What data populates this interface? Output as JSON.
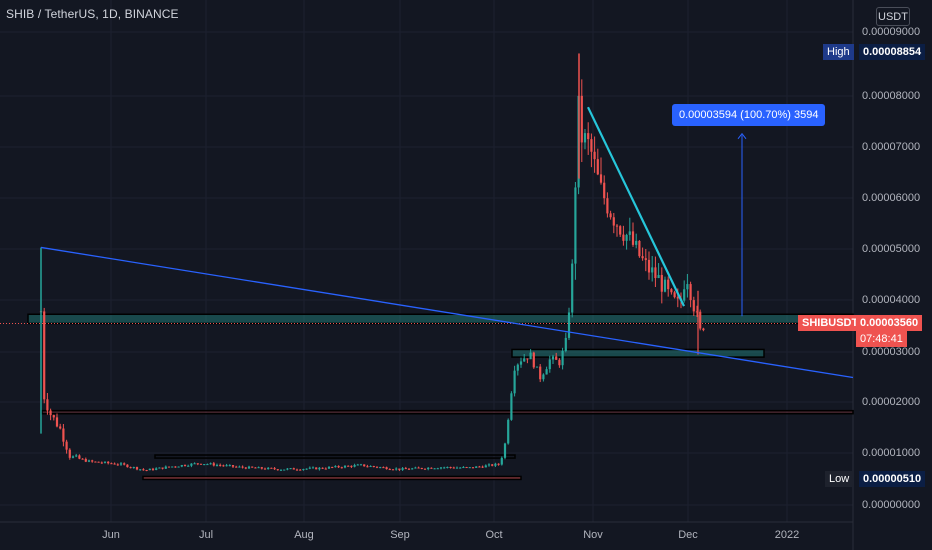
{
  "header": {
    "symbol_title": "SHIB / TetherUS, 1D, BINANCE",
    "currency_button": "USDT"
  },
  "price_axis": {
    "labels": [
      "0.00009000",
      "0.00008000",
      "0.00007000",
      "0.00006000",
      "0.00005000",
      "0.00004000",
      "0.00003000",
      "0.00002000",
      "0.00001000",
      "0.00000000"
    ],
    "high_label": "High",
    "high_value": "0.00008854",
    "low_label": "Low",
    "low_value": "0.00000510",
    "current_symbol": "SHIBUSDT",
    "current_value": "0.00003560",
    "countdown": "07:48:41"
  },
  "time_axis": {
    "labels": [
      "Jun",
      "Jul",
      "Aug",
      "Sep",
      "Oct",
      "Nov",
      "Dec",
      "2022"
    ]
  },
  "measure_label": "0.00003594 (100.70%) 3594",
  "colors": {
    "background": "#131722",
    "up": "#26a69a",
    "down": "#ef5350",
    "trendline": "#2962ff",
    "accent_blue": "#2962ff"
  },
  "chart_data": {
    "type": "candlestick",
    "x_range": [
      "May 2021",
      "Jan 2022"
    ],
    "ylim": [
      0,
      9e-05
    ],
    "high": 8.854e-05,
    "low": 5.1e-06,
    "last": 3.56e-05,
    "notable_points": [
      {
        "date": "May 10 2021",
        "high": 5.05e-05
      },
      {
        "date": "Oct 28 2021",
        "high": 8.854e-05
      },
      {
        "date": "Dec 4 2021",
        "low": 2.95e-05
      },
      {
        "date": "Dec 7 2021",
        "close": 3.56e-05
      }
    ],
    "zones": [
      {
        "from": 3.56e-05,
        "to": 3.74e-05
      },
      {
        "from": 2.9e-05,
        "to": 3.05e-05
      },
      {
        "from": 1.79e-05,
        "to": 1.85e-05
      },
      {
        "from": 9.2e-06,
        "to": 9.8e-06
      },
      {
        "from": 5.1e-06,
        "to": 5.6e-06
      }
    ]
  }
}
